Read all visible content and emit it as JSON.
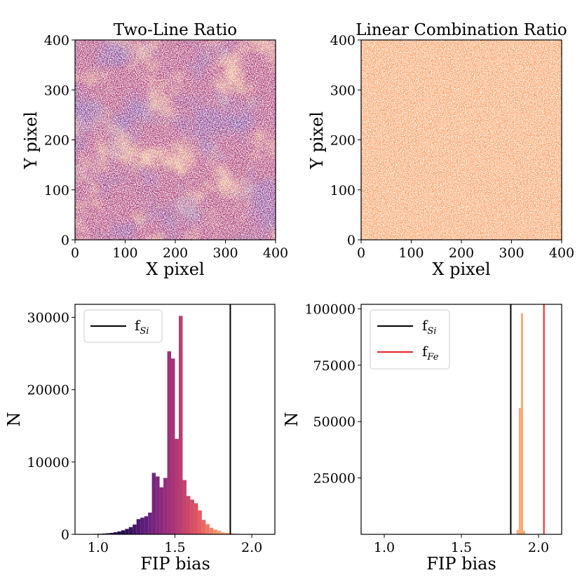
{
  "chart_data": [
    {
      "type": "heatmap",
      "title": "Two-Line Ratio",
      "xlabel": "X pixel",
      "ylabel": "Y pixel",
      "xlim": [
        0,
        400
      ],
      "ylim": [
        0,
        400
      ],
      "xticks": [
        "0",
        "100",
        "200",
        "300",
        "400"
      ],
      "yticks": [
        "0",
        "100",
        "200",
        "300",
        "400"
      ],
      "colormap": "magma",
      "base_color": "#b24a7d"
    },
    {
      "type": "heatmap",
      "title": "Linear Combination Ratio",
      "xlabel": "X pixel",
      "ylabel": "Y pixel",
      "xlim": [
        0,
        400
      ],
      "ylim": [
        0,
        400
      ],
      "xticks": [
        "0",
        "100",
        "200",
        "300",
        "400"
      ],
      "yticks": [
        "0",
        "100",
        "200",
        "300",
        "400"
      ],
      "colormap": "uniform",
      "base_color": "#f8aa75"
    },
    {
      "type": "bar",
      "xlabel": "FIP bias",
      "ylabel": "N",
      "xlim": [
        0.85,
        2.15
      ],
      "ylim": [
        0,
        31800
      ],
      "xticks": [
        "1.0",
        "1.5",
        "2.0"
      ],
      "yticks": [
        "0",
        "10000",
        "20000",
        "30000"
      ],
      "bin_width": 0.025,
      "bin_starts": [
        0.9,
        0.925,
        0.95,
        0.975,
        1.0,
        1.025,
        1.05,
        1.075,
        1.1,
        1.125,
        1.15,
        1.175,
        1.2,
        1.225,
        1.25,
        1.275,
        1.3,
        1.325,
        1.35,
        1.375,
        1.4,
        1.425,
        1.45,
        1.475,
        1.5,
        1.525,
        1.55,
        1.575,
        1.6,
        1.625,
        1.65,
        1.675,
        1.7,
        1.725,
        1.75,
        1.775,
        1.8,
        1.825,
        1.85,
        1.875,
        1.9,
        1.925,
        1.95
      ],
      "values": [
        20,
        30,
        40,
        60,
        80,
        110,
        150,
        200,
        280,
        400,
        550,
        750,
        1000,
        1350,
        2100,
        2300,
        2500,
        3000,
        8500,
        8000,
        6500,
        7800,
        25300,
        24300,
        13200,
        30200,
        7500,
        5300,
        4800,
        4300,
        3300,
        2000,
        1400,
        900,
        650,
        500,
        300,
        200,
        150,
        100,
        60,
        40,
        20
      ],
      "vlines": [
        {
          "label": "f",
          "sub": "Si",
          "x": 1.86,
          "color": "#000000"
        }
      ]
    },
    {
      "type": "bar",
      "xlabel": "FIP bias",
      "ylabel": "N",
      "xlim": [
        0.85,
        2.15
      ],
      "ylim": [
        0,
        102000
      ],
      "xticks": [
        "1.0",
        "1.5",
        "2.0"
      ],
      "yticks": [
        "25000",
        "50000",
        "75000",
        "100000"
      ],
      "bin_width": 0.014,
      "bin_starts": [
        1.844,
        1.858,
        1.872,
        1.886,
        1.9,
        1.914
      ],
      "values": [
        100,
        2000,
        56000,
        98000,
        1500,
        100
      ],
      "bar_color": "#f9a97a",
      "vlines": [
        {
          "label": "f",
          "sub": "Si",
          "x": 1.82,
          "color": "#000000"
        },
        {
          "label": "f",
          "sub": "Fe",
          "x": 2.035,
          "color": "#ee2222"
        }
      ]
    }
  ]
}
